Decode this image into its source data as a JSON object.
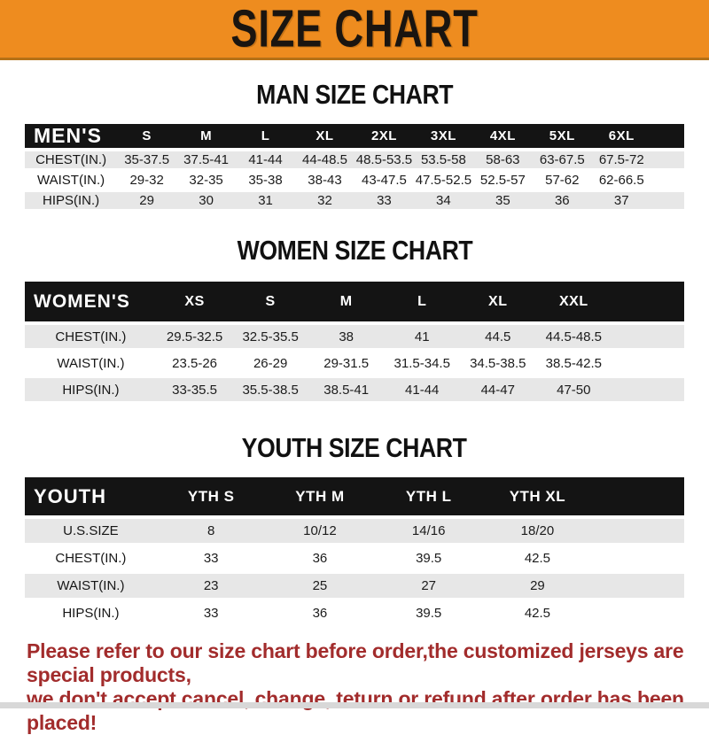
{
  "banner": {
    "title": "SIZE CHART"
  },
  "colors": {
    "banner_orange": "#EE8C1F",
    "header_bar_black": "#141414",
    "row_stripe_gray": "#E7E7E7",
    "footer_red": "#A22C2C"
  },
  "men_table": {
    "heading": "MAN SIZE CHART",
    "corner": "MEN'S",
    "sizes": [
      "S",
      "M",
      "L",
      "XL",
      "2XL",
      "3XL",
      "4XL",
      "5XL",
      "6XL"
    ],
    "rows": [
      {
        "label": "CHEST(IN.)",
        "values": [
          "35-37.5",
          "37.5-41",
          "41-44",
          "44-48.5",
          "48.5-53.5",
          "53.5-58",
          "58-63",
          "63-67.5",
          "67.5-72"
        ]
      },
      {
        "label": "WAIST(IN.)",
        "values": [
          "29-32",
          "32-35",
          "35-38",
          "38-43",
          "43-47.5",
          "47.5-52.5",
          "52.5-57",
          "57-62",
          "62-66.5"
        ]
      },
      {
        "label": "HIPS(IN.)",
        "values": [
          "29",
          "30",
          "31",
          "32",
          "33",
          "34",
          "35",
          "36",
          "37"
        ]
      }
    ]
  },
  "women_table": {
    "heading": "WOMEN SIZE CHART",
    "corner": "WOMEN'S",
    "sizes": [
      "XS",
      "S",
      "M",
      "L",
      "XL",
      "XXL"
    ],
    "rows": [
      {
        "label": "CHEST(IN.)",
        "values": [
          "29.5-32.5",
          "32.5-35.5",
          "38",
          "41",
          "44.5",
          "44.5-48.5"
        ]
      },
      {
        "label": "WAIST(IN.)",
        "values": [
          "23.5-26",
          "26-29",
          "29-31.5",
          "31.5-34.5",
          "34.5-38.5",
          "38.5-42.5"
        ]
      },
      {
        "label": "HIPS(IN.)",
        "values": [
          "33-35.5",
          "35.5-38.5",
          "38.5-41",
          "41-44",
          "44-47",
          "47-50"
        ]
      }
    ]
  },
  "youth_table": {
    "heading": "YOUTH SIZE CHART",
    "corner": "YOUTH",
    "sizes": [
      "YTH S",
      "YTH M",
      "YTH L",
      "YTH XL"
    ],
    "rows": [
      {
        "label": "U.S.SIZE",
        "values": [
          "8",
          "10/12",
          "14/16",
          "18/20"
        ]
      },
      {
        "label": "CHEST(IN.)",
        "values": [
          "33",
          "36",
          "39.5",
          "42.5"
        ]
      },
      {
        "label": "WAIST(IN.)",
        "values": [
          "23",
          "25",
          "27",
          "29"
        ]
      },
      {
        "label": "HIPS(IN.)",
        "values": [
          "33",
          "36",
          "39.5",
          "42.5"
        ]
      }
    ]
  },
  "footer": {
    "line1": "Please refer to our size chart before order,the customized jerseys are special products,",
    "line2": "we don't accept cancel, change, teturn or refund after order has been placed!"
  }
}
